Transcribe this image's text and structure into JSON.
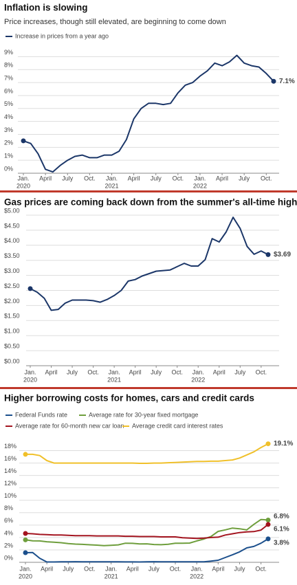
{
  "chart_data": [
    {
      "type": "line",
      "title": "Inflation is slowing",
      "subtitle": "Price increases, though still elevated, are beginning to come down",
      "categories": [
        "Jan.",
        null,
        null,
        "April",
        null,
        null,
        "July",
        null,
        null,
        "Oct.",
        null,
        null,
        "Jan.",
        null,
        null,
        "April",
        null,
        null,
        "July",
        null,
        null,
        "Oct.",
        null,
        null,
        "Jan.",
        null,
        null,
        "April",
        null,
        null,
        "July",
        null,
        null,
        "Oct.",
        null
      ],
      "x_years": [
        "2020",
        null,
        null,
        null,
        null,
        null,
        null,
        null,
        null,
        null,
        null,
        null,
        "2021",
        null,
        null,
        null,
        null,
        null,
        null,
        null,
        null,
        null,
        null,
        null,
        "2022",
        null,
        null,
        null,
        null,
        null,
        null,
        null,
        null,
        null,
        null
      ],
      "series": [
        {
          "name": "Increase in prices from a year ago",
          "color": "#1b3668",
          "values": [
            2.5,
            2.3,
            1.5,
            0.3,
            0.1,
            0.6,
            1.0,
            1.3,
            1.4,
            1.2,
            1.2,
            1.4,
            1.4,
            1.7,
            2.6,
            4.2,
            5.0,
            5.4,
            5.4,
            5.3,
            5.4,
            6.2,
            6.8,
            7.0,
            7.5,
            7.9,
            8.5,
            8.3,
            8.6,
            9.1,
            8.5,
            8.3,
            8.2,
            7.7,
            7.1
          ],
          "value_labels": [
            null,
            null,
            null,
            null,
            null,
            null,
            null,
            null,
            null,
            null,
            null,
            null,
            null,
            null,
            null,
            null,
            null,
            null,
            null,
            null,
            null,
            null,
            null,
            null,
            null,
            null,
            null,
            null,
            null,
            null,
            null,
            null,
            null,
            null,
            "7.1%"
          ]
        }
      ],
      "ylim": [
        0,
        9.5
      ],
      "yticks": [
        {
          "value": 0,
          "label": "0%"
        },
        {
          "value": 1,
          "label": "1%"
        },
        {
          "value": 2,
          "label": "2%"
        },
        {
          "value": 3,
          "label": "3%"
        },
        {
          "value": 4,
          "label": "4%"
        },
        {
          "value": 5,
          "label": "5%"
        },
        {
          "value": 6,
          "label": "6%"
        },
        {
          "value": 7,
          "label": "7%"
        },
        {
          "value": 8,
          "label": "8%"
        },
        {
          "value": 9,
          "label": "9%"
        }
      ],
      "grid": true,
      "legend": "top-left"
    },
    {
      "type": "line",
      "title": "Gas prices are coming back down from the summer's all-time highs",
      "categories": [
        "Jan.",
        null,
        null,
        "April",
        null,
        null,
        "July",
        null,
        null,
        "Oct.",
        null,
        null,
        "Jan.",
        null,
        null,
        "April",
        null,
        null,
        "July",
        null,
        null,
        "Oct.",
        null,
        null,
        "Jan.",
        null,
        null,
        "April",
        null,
        null,
        "July",
        null,
        null,
        "Oct.",
        null
      ],
      "x_years": [
        "2020",
        null,
        null,
        null,
        null,
        null,
        null,
        null,
        null,
        null,
        null,
        null,
        "2021",
        null,
        null,
        null,
        null,
        null,
        null,
        null,
        null,
        null,
        null,
        null,
        "2022",
        null,
        null,
        null,
        null,
        null,
        null,
        null,
        null,
        null,
        null
      ],
      "series": [
        {
          "color": "#1b3668",
          "values": [
            2.56,
            2.44,
            2.24,
            1.84,
            1.87,
            2.08,
            2.18,
            2.18,
            2.18,
            2.16,
            2.11,
            2.2,
            2.33,
            2.5,
            2.81,
            2.86,
            2.98,
            3.06,
            3.14,
            3.16,
            3.18,
            3.29,
            3.4,
            3.31,
            3.31,
            3.52,
            4.22,
            4.11,
            4.44,
            4.93,
            4.56,
            3.96,
            3.7,
            3.81,
            3.69
          ],
          "value_labels": [
            null,
            null,
            null,
            null,
            null,
            null,
            null,
            null,
            null,
            null,
            null,
            null,
            null,
            null,
            null,
            null,
            null,
            null,
            null,
            null,
            null,
            null,
            null,
            null,
            null,
            null,
            null,
            null,
            null,
            null,
            null,
            null,
            null,
            null,
            "$3.69"
          ]
        }
      ],
      "ylim": [
        0,
        5
      ],
      "yticks": [
        {
          "value": 0,
          "label": "$0.00"
        },
        {
          "value": 0.5,
          "label": "$0.50"
        },
        {
          "value": 1,
          "label": "$1.00"
        },
        {
          "value": 1.5,
          "label": "$1.50"
        },
        {
          "value": 2,
          "label": "$2.00"
        },
        {
          "value": 2.5,
          "label": "$2.50"
        },
        {
          "value": 3,
          "label": "$3.00"
        },
        {
          "value": 3.5,
          "label": "$3.50"
        },
        {
          "value": 4,
          "label": "$4.00"
        },
        {
          "value": 4.5,
          "label": "$4.50"
        },
        {
          "value": 5,
          "label": "$5.00"
        }
      ],
      "grid": true
    },
    {
      "type": "line",
      "title": "Higher borrowing costs for homes, cars and credit cards",
      "categories": [
        "Jan.",
        null,
        null,
        "April",
        null,
        null,
        "July",
        null,
        null,
        "Oct.",
        null,
        null,
        "Jan.",
        null,
        null,
        "April",
        null,
        null,
        "July",
        null,
        null,
        "Oct.",
        null,
        null,
        "Jan.",
        null,
        null,
        "April",
        null,
        null,
        "July",
        null,
        null,
        "Oct.",
        null
      ],
      "x_years": [
        "2020",
        null,
        null,
        null,
        null,
        null,
        null,
        null,
        null,
        null,
        null,
        null,
        "2021",
        null,
        null,
        null,
        null,
        null,
        null,
        null,
        null,
        null,
        null,
        null,
        "2022",
        null,
        null,
        null,
        null,
        null,
        null,
        null,
        null,
        null,
        null
      ],
      "series": [
        {
          "name": "Federal Funds rate",
          "color": "#1b4f8c",
          "values": [
            1.55,
            1.58,
            0.65,
            0.05,
            0.05,
            0.08,
            0.09,
            0.1,
            0.09,
            0.09,
            0.09,
            0.09,
            0.09,
            0.08,
            0.07,
            0.07,
            0.06,
            0.08,
            0.1,
            0.09,
            0.08,
            0.08,
            0.08,
            0.08,
            0.08,
            0.08,
            0.2,
            0.33,
            0.77,
            1.21,
            1.68,
            2.33,
            2.56,
            3.08,
            3.78
          ],
          "value_labels": [
            null,
            null,
            null,
            null,
            null,
            null,
            null,
            null,
            null,
            null,
            null,
            null,
            null,
            null,
            null,
            null,
            null,
            null,
            null,
            null,
            null,
            null,
            null,
            null,
            null,
            null,
            null,
            null,
            null,
            null,
            null,
            null,
            null,
            null,
            "3.8%"
          ]
        },
        {
          "name": "Average rate for 30-year fixed mortgage",
          "color": "#6e9e3c",
          "values": [
            3.62,
            3.47,
            3.45,
            3.31,
            3.23,
            3.16,
            3.02,
            2.94,
            2.89,
            2.83,
            2.77,
            2.68,
            2.74,
            2.81,
            3.08,
            3.06,
            2.96,
            2.98,
            2.87,
            2.84,
            2.9,
            3.07,
            3.07,
            3.1,
            3.45,
            3.76,
            4.17,
            4.98,
            5.23,
            5.52,
            5.41,
            5.22,
            6.11,
            6.9,
            6.81
          ],
          "value_labels": [
            null,
            null,
            null,
            null,
            null,
            null,
            null,
            null,
            null,
            null,
            null,
            null,
            null,
            null,
            null,
            null,
            null,
            null,
            null,
            null,
            null,
            null,
            null,
            null,
            null,
            null,
            null,
            null,
            null,
            null,
            null,
            null,
            null,
            null,
            "6.8%"
          ]
        },
        {
          "name": "Average rate for 60-month new car loan",
          "color": "#a3141f",
          "values": [
            4.65,
            4.6,
            4.5,
            4.45,
            4.4,
            4.4,
            4.35,
            4.3,
            4.3,
            4.3,
            4.25,
            4.25,
            4.25,
            4.25,
            4.2,
            4.2,
            4.15,
            4.15,
            4.15,
            4.1,
            4.1,
            4.1,
            3.95,
            3.9,
            3.85,
            3.9,
            4.0,
            4.05,
            4.4,
            4.6,
            4.8,
            4.9,
            4.95,
            5.2,
            6.1
          ],
          "value_labels": [
            null,
            null,
            null,
            null,
            null,
            null,
            null,
            null,
            null,
            null,
            null,
            null,
            null,
            null,
            null,
            null,
            null,
            null,
            null,
            null,
            null,
            null,
            null,
            null,
            null,
            null,
            null,
            null,
            null,
            null,
            null,
            null,
            null,
            null,
            "6.1%"
          ]
        },
        {
          "name": "Average credit card interest rates",
          "color": "#f0c02a",
          "values": [
            17.4,
            17.4,
            17.2,
            16.4,
            16.0,
            16.0,
            16.0,
            16.0,
            16.0,
            16.0,
            16.0,
            16.0,
            16.0,
            16.0,
            16.0,
            16.0,
            15.95,
            15.95,
            16.0,
            16.0,
            16.05,
            16.1,
            16.15,
            16.2,
            16.25,
            16.25,
            16.3,
            16.3,
            16.4,
            16.5,
            16.8,
            17.3,
            17.8,
            18.5,
            19.1
          ],
          "value_labels": [
            null,
            null,
            null,
            null,
            null,
            null,
            null,
            null,
            null,
            null,
            null,
            null,
            null,
            null,
            null,
            null,
            null,
            null,
            null,
            null,
            null,
            null,
            null,
            null,
            null,
            null,
            null,
            null,
            null,
            null,
            null,
            null,
            null,
            null,
            "19.1%"
          ]
        }
      ],
      "ylim": [
        0,
        18.5
      ],
      "yticks": [
        {
          "value": 0,
          "label": "0%"
        },
        {
          "value": 2,
          "label": "2%"
        },
        {
          "value": 4,
          "label": "4%"
        },
        {
          "value": 6,
          "label": "6%"
        },
        {
          "value": 8,
          "label": "8%"
        },
        {
          "value": 10,
          "label": "10%"
        },
        {
          "value": 12,
          "label": "12%"
        },
        {
          "value": 14,
          "label": "14%"
        },
        {
          "value": 16,
          "label": "16%"
        },
        {
          "value": 18,
          "label": "18%"
        }
      ],
      "grid": true,
      "legend": "top-left"
    }
  ]
}
